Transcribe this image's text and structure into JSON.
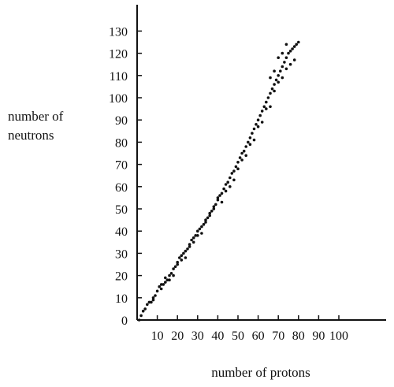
{
  "chart_data": {
    "type": "scatter",
    "title": "",
    "ylabel_lines": [
      "number of",
      "neutrons"
    ],
    "xlabel": "number of protons",
    "xlim": [
      0,
      110
    ],
    "ylim": [
      0,
      140
    ],
    "x_ticks": [
      10,
      20,
      30,
      40,
      50,
      60,
      70,
      80,
      90,
      100
    ],
    "y_ticks": [
      0,
      10,
      20,
      30,
      40,
      50,
      60,
      70,
      80,
      90,
      100,
      110,
      120,
      130
    ],
    "grid": false,
    "legend": "none",
    "point_color": "#111111",
    "series": [
      {
        "points": [
          [
            1,
            0
          ],
          [
            2,
            2
          ],
          [
            3,
            4
          ],
          [
            4,
            5
          ],
          [
            5,
            7
          ],
          [
            6,
            8
          ],
          [
            7,
            8
          ],
          [
            8,
            9
          ],
          [
            9,
            11
          ],
          [
            10,
            13
          ],
          [
            11,
            15
          ],
          [
            12,
            16
          ],
          [
            13,
            16
          ],
          [
            14,
            17
          ],
          [
            15,
            18
          ],
          [
            16,
            20
          ],
          [
            17,
            21
          ],
          [
            18,
            23
          ],
          [
            19,
            24
          ],
          [
            20,
            26
          ],
          [
            21,
            28
          ],
          [
            22,
            29
          ],
          [
            23,
            30
          ],
          [
            24,
            31
          ],
          [
            25,
            32
          ],
          [
            26,
            34
          ],
          [
            27,
            36
          ],
          [
            28,
            37
          ],
          [
            29,
            38
          ],
          [
            30,
            40
          ],
          [
            31,
            41
          ],
          [
            32,
            42
          ],
          [
            33,
            43
          ],
          [
            34,
            44
          ],
          [
            35,
            46
          ],
          [
            36,
            48
          ],
          [
            37,
            49
          ],
          [
            38,
            50
          ],
          [
            39,
            52
          ],
          [
            40,
            54
          ],
          [
            41,
            56
          ],
          [
            42,
            57
          ],
          [
            43,
            59
          ],
          [
            44,
            61
          ],
          [
            45,
            62
          ],
          [
            46,
            64
          ],
          [
            47,
            66
          ],
          [
            48,
            67
          ],
          [
            49,
            69
          ],
          [
            50,
            71
          ],
          [
            51,
            73
          ],
          [
            52,
            75
          ],
          [
            53,
            76
          ],
          [
            54,
            78
          ],
          [
            55,
            80
          ],
          [
            56,
            82
          ],
          [
            57,
            84
          ],
          [
            58,
            86
          ],
          [
            59,
            88
          ],
          [
            60,
            90
          ],
          [
            61,
            92
          ],
          [
            62,
            94
          ],
          [
            63,
            96
          ],
          [
            64,
            98
          ],
          [
            65,
            100
          ],
          [
            66,
            102
          ],
          [
            67,
            104
          ],
          [
            68,
            106
          ],
          [
            69,
            108
          ],
          [
            70,
            110
          ],
          [
            71,
            112
          ],
          [
            72,
            114
          ],
          [
            73,
            116
          ],
          [
            74,
            118
          ],
          [
            75,
            120
          ],
          [
            76,
            121
          ],
          [
            77,
            122
          ],
          [
            78,
            123
          ],
          [
            79,
            124
          ],
          [
            80,
            125
          ],
          [
            8,
            10
          ],
          [
            12,
            14
          ],
          [
            14,
            19
          ],
          [
            16,
            18
          ],
          [
            18,
            20
          ],
          [
            20,
            25
          ],
          [
            22,
            27
          ],
          [
            24,
            28
          ],
          [
            26,
            33
          ],
          [
            28,
            35
          ],
          [
            30,
            38
          ],
          [
            32,
            39
          ],
          [
            34,
            45
          ],
          [
            36,
            47
          ],
          [
            38,
            51
          ],
          [
            40,
            55
          ],
          [
            42,
            53
          ],
          [
            44,
            58
          ],
          [
            46,
            60
          ],
          [
            48,
            63
          ],
          [
            50,
            68
          ],
          [
            52,
            72
          ],
          [
            54,
            74
          ],
          [
            56,
            79
          ],
          [
            58,
            81
          ],
          [
            60,
            87
          ],
          [
            62,
            89
          ],
          [
            64,
            95
          ],
          [
            66,
            96
          ],
          [
            68,
            103
          ],
          [
            70,
            107
          ],
          [
            72,
            109
          ],
          [
            74,
            113
          ],
          [
            76,
            115
          ],
          [
            78,
            117
          ],
          [
            66,
            109
          ],
          [
            68,
            112
          ],
          [
            70,
            118
          ],
          [
            72,
            120
          ],
          [
            74,
            124
          ]
        ]
      }
    ]
  }
}
